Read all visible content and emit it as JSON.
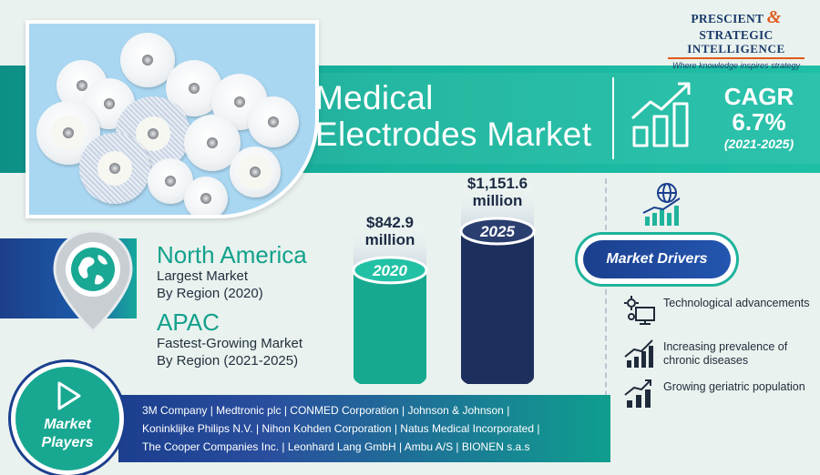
{
  "logo": {
    "line1_a": "PRESCIENT",
    "line1_amp": "&",
    "line1_b": "STRATEGIC",
    "line2": "INTELLIGENCE",
    "tagline": "Where knowledge inspires strategy"
  },
  "title": {
    "line1": "Medical",
    "line2": "Electrodes Market"
  },
  "cagr": {
    "label": "CAGR",
    "value": "6.7%",
    "period": "(2021-2025)"
  },
  "regions": [
    {
      "name": "North America",
      "desc1": "Largest Market",
      "desc2": "By Region (2020)"
    },
    {
      "name": "APAC",
      "desc1": "Fastest-Growing Market",
      "desc2": "By Region (2021-2025)"
    }
  ],
  "chart_data": {
    "type": "bar",
    "categories": [
      "2020",
      "2025"
    ],
    "values": [
      842.9,
      1151.6
    ],
    "value_labels": [
      {
        "amount": "$842.9",
        "unit": "million"
      },
      {
        "amount": "$1,151.6",
        "unit": "million"
      }
    ],
    "colors": [
      "#17a98f",
      "#1d2f5c"
    ]
  },
  "drivers": {
    "title": "Market Drivers",
    "items": [
      {
        "text": "Technological advancements",
        "icon": "gears-screen-icon"
      },
      {
        "text": "Increasing prevalence of chronic diseases",
        "icon": "rising-chart-icon"
      },
      {
        "text": "Growing geriatric population",
        "icon": "growth-bars-icon"
      }
    ]
  },
  "players": {
    "title_line1": "Market",
    "title_line2": "Players",
    "line1": "3M Company |  Medtronic plc | CONMED Corporation | Johnson & Johnson |",
    "line2": "Koninklijke Philips N.V. | Nihon Kohden Corporation | Natus Medical Incorporated |",
    "line3": "The Cooper Companies Inc. | Leonhard Lang GmbH | Ambu A/S | BIONEN s.a.s"
  },
  "colors": {
    "teal": "#17b39c",
    "navy": "#1b3f8e",
    "orange": "#e2591c"
  }
}
